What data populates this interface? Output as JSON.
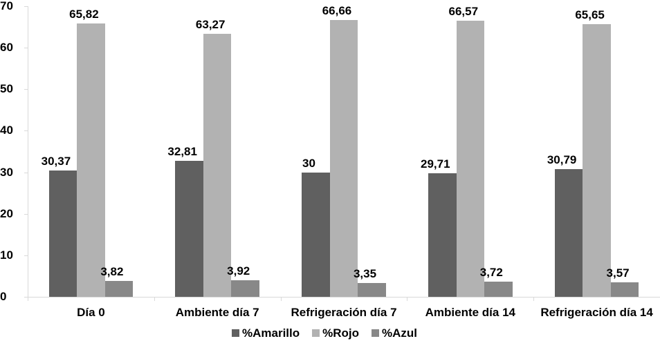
{
  "chart_data": {
    "type": "bar",
    "title": "",
    "xlabel": "",
    "ylabel": "",
    "ylim": [
      0,
      70
    ],
    "yticks": [
      0,
      10,
      20,
      30,
      40,
      50,
      60,
      70
    ],
    "grid": false,
    "legend_position": "bottom",
    "categories": [
      "Día 0",
      "Ambiente día 7",
      "Refrigeración día 7",
      "Ambiente día 14",
      "Refrigeración día 14"
    ],
    "series": [
      {
        "name": "%Amarillo",
        "color": "#606060",
        "values": [
          30.37,
          32.81,
          30,
          29.71,
          30.79
        ],
        "labels": [
          "30,37",
          "32,81",
          "30",
          "29,71",
          "30,79"
        ]
      },
      {
        "name": "%Rojo",
        "color": "#b2b2b2",
        "values": [
          65.82,
          63.27,
          66.66,
          66.57,
          65.65
        ],
        "labels": [
          "65,82",
          "63,27",
          "66,66",
          "66,57",
          "65,65"
        ]
      },
      {
        "name": "%Azul",
        "color": "#888888",
        "values": [
          3.82,
          3.92,
          3.35,
          3.72,
          3.57
        ],
        "labels": [
          "3,82",
          "3,92",
          "3,35",
          "3,72",
          "3,57"
        ]
      }
    ]
  },
  "axis_color": "#d9d9d9"
}
